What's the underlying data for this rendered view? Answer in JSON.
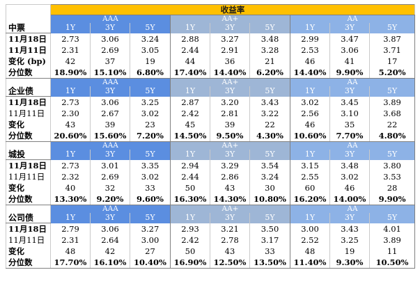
{
  "title": "收益率",
  "sections": [
    {
      "name": "中票",
      "groups": [
        "AAA",
        "AA+",
        "AA"
      ],
      "terms": [
        "1Y",
        "3Y",
        "5Y"
      ],
      "rows": [
        {
          "label": "11月18日",
          "values": [
            "2.73",
            "3.06",
            "3.24",
            "2.88",
            "3.27",
            "3.48",
            "2.99",
            "3.47",
            "3.87"
          ]
        },
        {
          "label": "11月11日",
          "values": [
            "2.31",
            "2.69",
            "3.05",
            "2.44",
            "2.91",
            "3.28",
            "2.53",
            "3.06",
            "3.71"
          ]
        },
        {
          "label": "变化 (bp)",
          "values": [
            "42",
            "37",
            "19",
            "44",
            "36",
            "21",
            "46",
            "41",
            "17"
          ]
        },
        {
          "label": "分位数",
          "values": [
            "18.90%",
            "15.10%",
            "6.80%",
            "17.40%",
            "14.40%",
            "6.20%",
            "14.40%",
            "9.90%",
            "5.20%"
          ]
        }
      ]
    },
    {
      "name": "企业债",
      "groups": [
        "AAA",
        "AA+",
        "AA"
      ],
      "terms": [
        "1Y",
        "3Y",
        "5Y"
      ],
      "rows": [
        {
          "label": "11月18日",
          "values": [
            "2.73",
            "3.06",
            "3.25",
            "2.87",
            "3.20",
            "3.43",
            "3.02",
            "3.45",
            "3.89"
          ]
        },
        {
          "label": "11月11日",
          "values": [
            "2.30",
            "2.67",
            "3.02",
            "2.42",
            "2.81",
            "3.22",
            "2.56",
            "3.10",
            "3.68"
          ]
        },
        {
          "label": "变化",
          "values": [
            "43",
            "39",
            "23",
            "45",
            "39",
            "22",
            "46",
            "35",
            "22"
          ]
        },
        {
          "label": "分位数",
          "values": [
            "20.60%",
            "15.60%",
            "7.20%",
            "14.50%",
            "9.50%",
            "4.30%",
            "10.60%",
            "7.70%",
            "4.80%"
          ]
        }
      ]
    },
    {
      "name": "城投",
      "groups": [
        "AAA",
        "AA+",
        "AA"
      ],
      "terms": [
        "1Y",
        "3Y",
        "5Y"
      ],
      "rows": [
        {
          "label": "11月18日",
          "values": [
            "2.73",
            "3.01",
            "3.35",
            "2.94",
            "3.29",
            "3.54",
            "3.15",
            "3.48",
            "3.80"
          ]
        },
        {
          "label": "11月11日",
          "values": [
            "2.32",
            "2.69",
            "3.02",
            "2.44",
            "2.86",
            "3.24",
            "2.55",
            "3.02",
            "3.53"
          ]
        },
        {
          "label": "变化",
          "values": [
            "40",
            "32",
            "33",
            "50",
            "43",
            "30",
            "60",
            "46",
            "28"
          ]
        },
        {
          "label": "分位数",
          "values": [
            "13.30%",
            "9.20%",
            "9.60%",
            "16.30%",
            "14.30%",
            "10.80%",
            "16.20%",
            "14.00%",
            "9.90%"
          ]
        }
      ]
    },
    {
      "name": "公司债",
      "groups": [
        "AAA",
        "AA+",
        "AA"
      ],
      "terms": [
        "1Y",
        "3Y",
        "5Y"
      ],
      "rows": [
        {
          "label": "11月18日",
          "values": [
            "2.79",
            "3.06",
            "3.27",
            "2.93",
            "3.21",
            "3.50",
            "3.00",
            "3.43",
            "4.01"
          ]
        },
        {
          "label": "11月11日",
          "values": [
            "2.31",
            "2.64",
            "3.00",
            "2.42",
            "2.78",
            "3.17",
            "2.52",
            "3.25",
            "3.89"
          ]
        },
        {
          "label": "变化",
          "values": [
            "48",
            "42",
            "27",
            "50",
            "43",
            "33",
            "48",
            "19",
            "11"
          ]
        },
        {
          "label": "分位数",
          "values": [
            "17.70%",
            "16.10%",
            "10.40%",
            "16.90%",
            "12.50%",
            "13.50%",
            "11.40%",
            "9.30%",
            "10.50%"
          ]
        }
      ]
    }
  ],
  "colors": {
    "title_bg": "#ffc000",
    "aaa_bg": "#5b8ee0",
    "aa_plus_bg": "#9eb6d6",
    "aa_bg": "#8db2e6"
  }
}
